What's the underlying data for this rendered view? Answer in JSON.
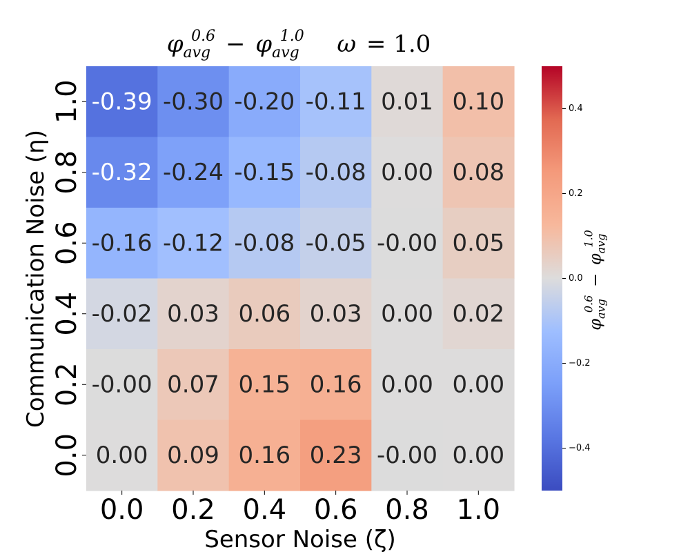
{
  "chart_data": {
    "type": "heatmap",
    "title_parts": {
      "sym": "φ",
      "lhs_sub": "avg",
      "lhs_sup": "0.6",
      "op": "−",
      "rhs_sub": "avg",
      "rhs_sup": "1.0",
      "param_sym": "ω",
      "param_eq": "= 1.0"
    },
    "xlabel": "Sensor Noise (ζ)",
    "ylabel": "Communication Noise (η)",
    "x_ticks": [
      "0.0",
      "0.2",
      "0.4",
      "0.6",
      "0.8",
      "1.0"
    ],
    "y_ticks_top_to_bottom": [
      "1.0",
      "0.8",
      "0.6",
      "0.4",
      "0.2",
      "0.0"
    ],
    "cells_top_to_bottom": [
      [
        -0.39,
        -0.3,
        -0.2,
        -0.11,
        0.01,
        0.1
      ],
      [
        -0.32,
        -0.24,
        -0.15,
        -0.08,
        0.0,
        0.08
      ],
      [
        -0.16,
        -0.12,
        -0.08,
        -0.05,
        -0.001,
        0.05
      ],
      [
        -0.02,
        0.03,
        0.06,
        0.03,
        0.0,
        0.02
      ],
      [
        -0.001,
        0.07,
        0.15,
        0.16,
        0.0,
        0.0
      ],
      [
        0.0,
        0.09,
        0.16,
        0.23,
        -0.001,
        0.0
      ]
    ],
    "cell_labels_top_to_bottom": [
      [
        "-0.39",
        "-0.30",
        "-0.20",
        "-0.11",
        "0.01",
        "0.10"
      ],
      [
        "-0.32",
        "-0.24",
        "-0.15",
        "-0.08",
        "0.00",
        "0.08"
      ],
      [
        "-0.16",
        "-0.12",
        "-0.08",
        "-0.05",
        "-0.00",
        "0.05"
      ],
      [
        "-0.02",
        "0.03",
        "0.06",
        "0.03",
        "0.00",
        "0.02"
      ],
      [
        "-0.00",
        "0.07",
        "0.15",
        "0.16",
        "0.00",
        "0.00"
      ],
      [
        "0.00",
        "0.09",
        "0.16",
        "0.23",
        "-0.00",
        "0.00"
      ]
    ],
    "colormap": "coolwarm",
    "vmin": -0.5,
    "vmax": 0.5,
    "colorbar_ticks": [
      0.4,
      0.2,
      0.0,
      -0.2,
      -0.4
    ],
    "colorbar_tick_labels": [
      "0.4",
      "0.2",
      "0.0",
      "−0.2",
      "−0.4"
    ],
    "cbar_label_parts": {
      "sym": "φ",
      "lhs_sub": "avg",
      "lhs_sup": "0.6",
      "op": "−",
      "rhs_sub": "avg",
      "rhs_sup": "1.0"
    },
    "colors": {
      "cool": "#3b4cc0",
      "neutral": "#dddcdc",
      "warm": "#b40426",
      "text_dark": "#262626",
      "text_light": "#ffffff"
    }
  }
}
